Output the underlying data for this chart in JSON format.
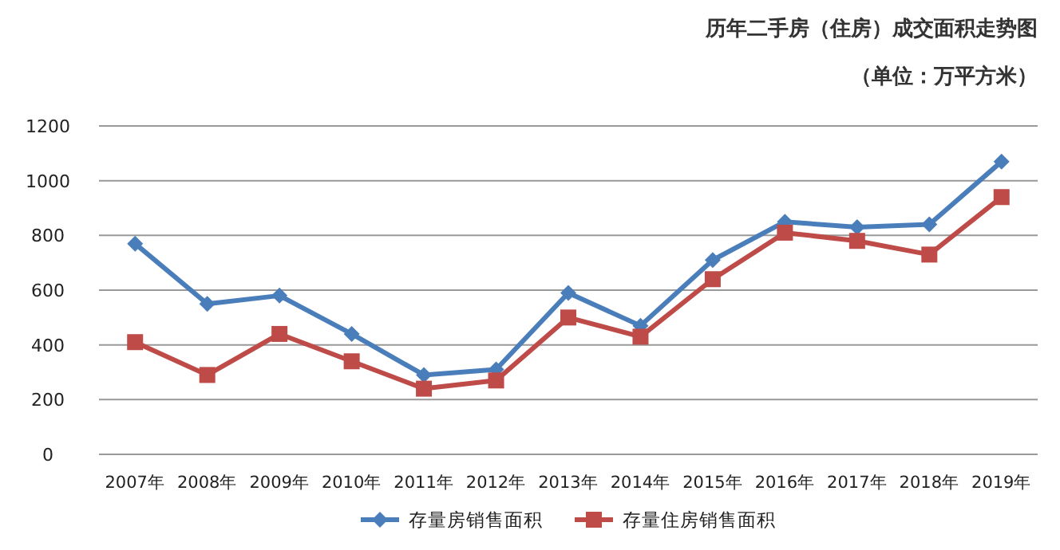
{
  "chart_data": {
    "type": "line",
    "title": "历年二手房（住房）成交面积走势图",
    "subtitle": "（单位：万平方米）",
    "categories": [
      "2007年",
      "2008年",
      "2009年",
      "2010年",
      "2011年",
      "2012年",
      "2013年",
      "2014年",
      "2015年",
      "2016年",
      "2017年",
      "2018年",
      "2019年"
    ],
    "series": [
      {
        "name": "存量房销售面积",
        "color": "#4a7ebb",
        "marker": "diamond",
        "values": [
          770,
          550,
          580,
          440,
          290,
          310,
          590,
          470,
          710,
          850,
          830,
          840,
          1070
        ]
      },
      {
        "name": "存量住房销售面积",
        "color": "#be4b48",
        "marker": "square",
        "values": [
          410,
          290,
          440,
          340,
          240,
          270,
          500,
          430,
          640,
          810,
          780,
          730,
          940
        ]
      }
    ],
    "ylim": [
      0,
      1200
    ],
    "yticks": [
      0,
      200,
      400,
      600,
      800,
      1000,
      1200
    ],
    "grid": "y",
    "legend": "bottom",
    "line_style": "solid"
  }
}
